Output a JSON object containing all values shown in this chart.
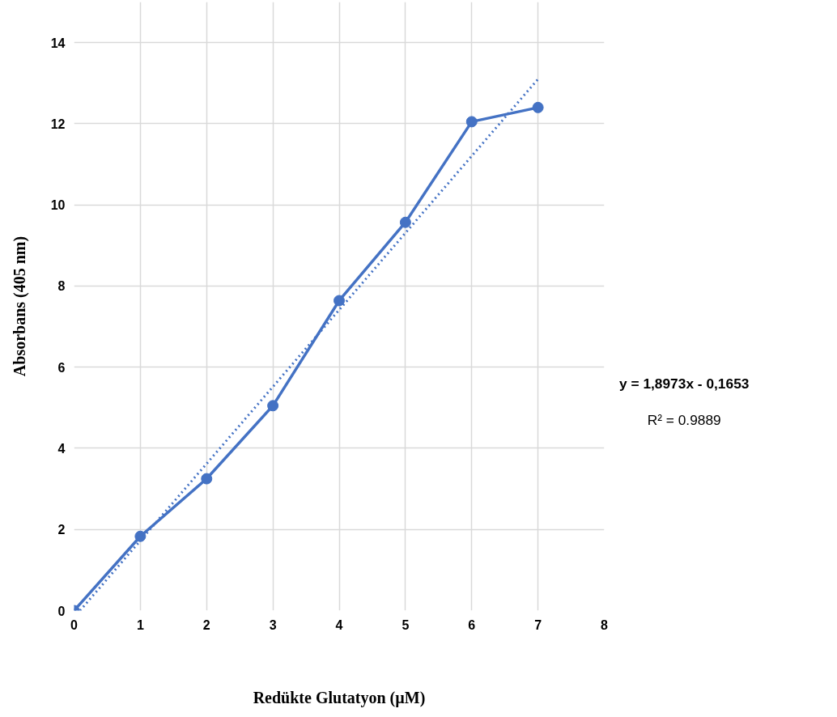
{
  "chart_data": {
    "type": "line",
    "xlabel": "Redükte Glutatyon (µM)",
    "ylabel": "Absorbans (405 nm)",
    "x": [
      0,
      1,
      2,
      3,
      4,
      5,
      6,
      7
    ],
    "series": [
      {
        "color": "#4472c4",
        "values": [
          0,
          1.83,
          3.25,
          5.05,
          7.64,
          9.57,
          12.05,
          12.4
        ],
        "marker": "circle",
        "line_style": "solid"
      },
      {
        "type": "line",
        "color": "#4472c4",
        "x": [
          0.09,
          7
        ],
        "values": [
          0,
          13.1
        ],
        "marker": "none",
        "line_style": "dotted"
      }
    ],
    "xlim": [
      0,
      8
    ],
    "xticks": [
      0,
      1,
      2,
      3,
      4,
      5,
      6,
      7,
      8
    ],
    "ylim": [
      0,
      15
    ],
    "yticks": [
      0,
      2,
      4,
      6,
      8,
      10,
      12,
      14
    ],
    "grid": true,
    "annotations": [
      "y = 1,8973x - 0,1653",
      "R² = 0.9889"
    ]
  }
}
